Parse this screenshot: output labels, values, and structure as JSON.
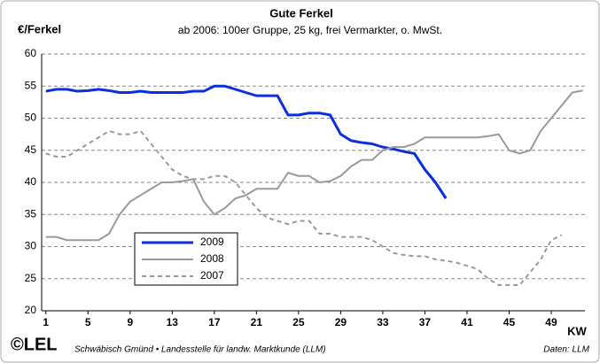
{
  "chart_data": {
    "type": "line",
    "title": "Gute Ferkel",
    "subtitle": "ab 2006: 100er Gruppe, 25 kg, frei Vermarkter, o. MwSt.",
    "y_label": "€/Ferkel",
    "x_label": "KW",
    "footer": "Schwäbisch Gmünd • Landesstelle für landw. Marktkunde (LLM)",
    "source": "Daten: LLM",
    "logo": "©LEL",
    "xlim": [
      0.6,
      52.2
    ],
    "xticks": [
      1,
      5,
      9,
      13,
      17,
      21,
      25,
      29,
      33,
      37,
      41,
      45,
      49
    ],
    "ylim": [
      20,
      60
    ],
    "yticks": [
      20,
      25,
      30,
      35,
      40,
      45,
      50,
      55,
      60
    ],
    "grid": true,
    "x": [
      1,
      2,
      3,
      4,
      5,
      6,
      7,
      8,
      9,
      10,
      11,
      12,
      13,
      14,
      15,
      16,
      17,
      18,
      19,
      20,
      21,
      22,
      23,
      24,
      25,
      26,
      27,
      28,
      29,
      30,
      31,
      32,
      33,
      34,
      35,
      36,
      37,
      38,
      39,
      40,
      41,
      42,
      43,
      44,
      45,
      46,
      47,
      48,
      49,
      50,
      51,
      52
    ],
    "series": [
      {
        "name": "2009",
        "color": "#0a2ee0",
        "line_style": "solid",
        "width": 3,
        "values": [
          54.2,
          54.5,
          54.5,
          54.2,
          54.3,
          54.5,
          54.3,
          54,
          54,
          54.2,
          54,
          54,
          54,
          54,
          54.2,
          54.2,
          55,
          55,
          54.5,
          54,
          53.5,
          53.5,
          53.5,
          50.5,
          50.5,
          50.8,
          50.8,
          50.5,
          47.5,
          46.5,
          46.2,
          46,
          45.5,
          45.2,
          44.8,
          44.5,
          42,
          40,
          37.5,
          null,
          null,
          null,
          null,
          null,
          null,
          null,
          null,
          null,
          null,
          null,
          null,
          null
        ]
      },
      {
        "name": "2008",
        "color": "#9a9a9a",
        "line_style": "solid",
        "width": 2,
        "values": [
          31.5,
          31.5,
          31,
          31,
          31,
          31,
          32,
          35,
          37,
          38,
          39,
          40,
          40,
          40.2,
          40.5,
          37,
          35,
          36,
          37.5,
          38,
          39,
          39,
          39,
          41.5,
          41,
          41,
          40,
          40.2,
          41,
          42.5,
          43.5,
          43.5,
          45,
          45.5,
          45.5,
          46,
          47,
          47,
          47,
          47,
          47,
          47,
          47.2,
          47.5,
          45,
          44.5,
          45,
          48,
          50,
          52,
          54,
          54.3
        ]
      },
      {
        "name": "2007",
        "color": "#9a9a9a",
        "line_style": "dashed",
        "width": 2,
        "values": [
          44.5,
          44,
          44,
          45,
          46,
          47,
          48,
          47.5,
          47.5,
          48,
          46,
          44,
          42,
          41,
          40.5,
          40.5,
          41,
          41,
          40,
          38,
          36,
          34.5,
          34,
          33.5,
          34,
          34,
          32,
          32,
          31.5,
          31.5,
          31.5,
          31,
          30,
          29,
          28.7,
          28.5,
          28.5,
          28,
          27.8,
          27.5,
          27,
          26.5,
          25,
          24,
          24,
          24,
          26,
          28,
          31,
          31.8,
          null,
          null
        ]
      }
    ]
  }
}
